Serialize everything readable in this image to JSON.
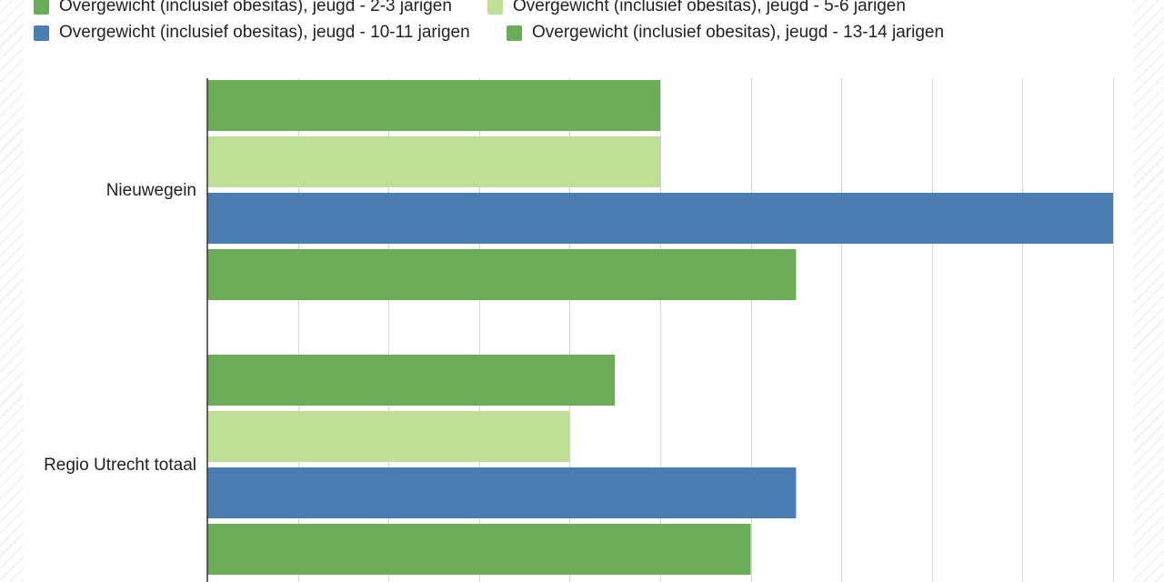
{
  "legend": {
    "items": [
      {
        "label": "Overgewicht (inclusief obesitas), jeugd - 2-3 jarigen",
        "color": "#6aad56"
      },
      {
        "label": "Overgewicht (inclusief obesitas), jeugd - 5-6 jarigen",
        "color": "#bedf94"
      },
      {
        "label": "Overgewicht (inclusief obesitas), jeugd - 10-11 jarigen",
        "color": "#4a7db4"
      },
      {
        "label": "Overgewicht (inclusief obesitas), jeugd - 13-14 jarigen",
        "color": "#6aad56"
      }
    ]
  },
  "chart_data": {
    "type": "bar",
    "orientation": "horizontal",
    "categories": [
      "Nieuwegein",
      "Regio Utrecht totaal"
    ],
    "series": [
      {
        "name": "Overgewicht (inclusief obesitas), jeugd - 2-3 jarigen",
        "values": [
          10,
          9
        ],
        "color": "#6aad56"
      },
      {
        "name": "Overgewicht (inclusief obesitas), jeugd - 5-6 jarigen",
        "values": [
          10,
          8
        ],
        "color": "#bedf94"
      },
      {
        "name": "Overgewicht (inclusief obesitas), jeugd - 10-11 jarigen",
        "values": [
          20,
          13
        ],
        "color": "#4a7db4"
      },
      {
        "name": "Overgewicht (inclusief obesitas), jeugd - 13-14 jarigen",
        "values": [
          13,
          12
        ],
        "color": "#6aad56"
      }
    ],
    "xlim": [
      0,
      20
    ],
    "grid": true,
    "legend_position": "top"
  }
}
